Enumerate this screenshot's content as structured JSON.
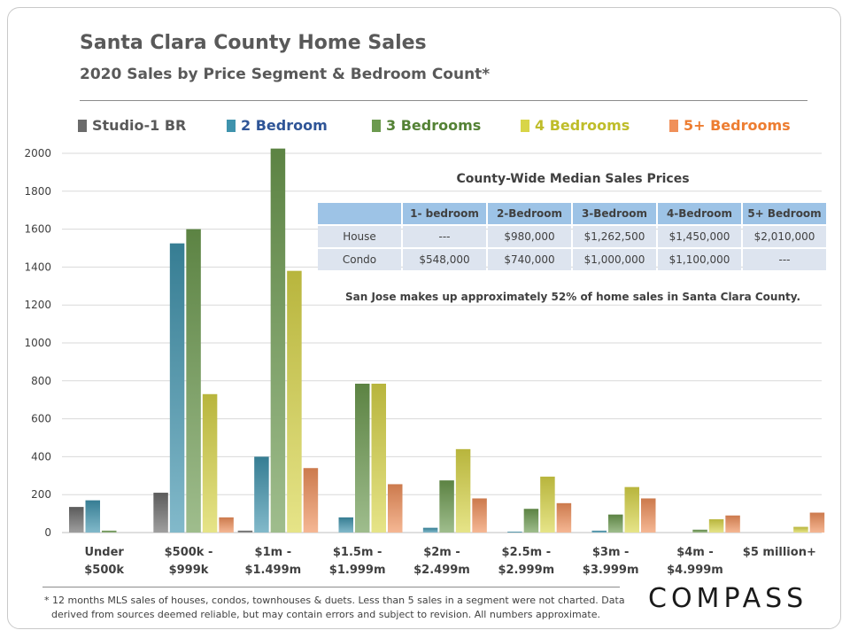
{
  "chart_data": {
    "type": "bar",
    "title": "Santa Clara County Home Sales",
    "subtitle": "2020 Sales by Price Segment & Bedroom Count*",
    "ylim": [
      0,
      2000
    ],
    "yticks": [
      0,
      200,
      400,
      600,
      800,
      1000,
      1200,
      1400,
      1600,
      1800,
      2000
    ],
    "grid": true,
    "legend_position": "top",
    "categories": [
      [
        "Under",
        "$500k"
      ],
      [
        "$500k -",
        "$999k"
      ],
      [
        "$1m -",
        "$1.499m"
      ],
      [
        "$1.5m -",
        "$1.999m"
      ],
      [
        "$2m -",
        "$2.499m"
      ],
      [
        "$2.5m -",
        "$2.999m"
      ],
      [
        "$3m -",
        "$3.999m"
      ],
      [
        "$4m -",
        "$4.999m"
      ],
      [
        "$5 million+",
        ""
      ]
    ],
    "series": [
      {
        "name": "Studio-1 BR",
        "color": "#6b6b6b",
        "values": [
          135,
          210,
          10,
          null,
          null,
          null,
          null,
          null,
          null
        ]
      },
      {
        "name": "2 Bedroom",
        "color": "#3f93ad",
        "values": [
          170,
          1525,
          400,
          80,
          25,
          5,
          10,
          null,
          null
        ]
      },
      {
        "name": "3 Bedrooms",
        "color": "#6c9a4f",
        "values": [
          10,
          1600,
          2025,
          785,
          275,
          125,
          95,
          15,
          null
        ]
      },
      {
        "name": "4 Bedrooms",
        "color": "#d8d548",
        "values": [
          null,
          730,
          1380,
          785,
          440,
          295,
          240,
          70,
          30
        ]
      },
      {
        "name": "5+ Bedrooms",
        "color": "#f0905a",
        "values": [
          null,
          80,
          340,
          255,
          180,
          155,
          180,
          90,
          105
        ]
      }
    ]
  },
  "legend_text_colors": [
    "#595959",
    "#2f5597",
    "#548235",
    "#bfbd2a",
    "#ed7d31"
  ],
  "median_table": {
    "title": "County-Wide  Median Sales Prices",
    "headers": [
      "",
      "1- bedroom",
      "2-Bedroom",
      "3-Bedroom",
      "4-Bedroom",
      "5+ Bedroom"
    ],
    "rows": [
      [
        "House",
        "---",
        "$980,000",
        "$1,262,500",
        "$1,450,000",
        "$2,010,000"
      ],
      [
        "Condo",
        "$548,000",
        "$740,000",
        "$1,000,000",
        "$1,100,000",
        "---"
      ]
    ]
  },
  "note": "San Jose makes up approximately 52% of home sales in Santa Clara County.",
  "footnote": [
    "* 12 months MLS sales of houses, condos, townhouses & duets. Less than 5 sales in a segment were not charted. Data",
    "derived from sources deemed reliable, but may contain errors and subject to revision. All numbers approximate."
  ],
  "logo": "COMPASS"
}
